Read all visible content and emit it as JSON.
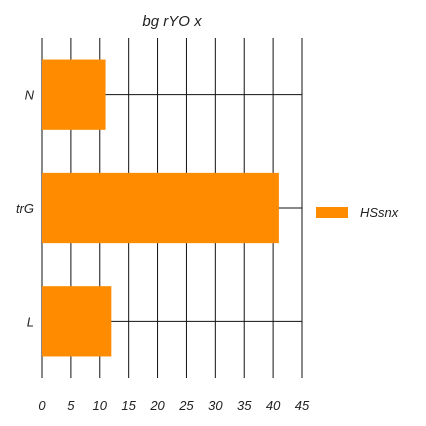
{
  "chart_data": {
    "type": "bar",
    "orientation": "horizontal",
    "title": "bg rYO x",
    "categories": [
      "N",
      "trG",
      "L"
    ],
    "series": [
      {
        "name": "HSsnx",
        "values": [
          11,
          41,
          12
        ]
      }
    ],
    "xlim": [
      0,
      45
    ],
    "xticks": [
      "0",
      "5",
      "10",
      "15",
      "20",
      "25",
      "30",
      "35",
      "40",
      "45"
    ],
    "xtick_values": [
      0,
      5,
      10,
      15,
      20,
      25,
      30,
      35,
      40,
      45
    ],
    "grid": true,
    "legend_position": "right",
    "colors": {
      "bar": "#FF8C00"
    }
  }
}
